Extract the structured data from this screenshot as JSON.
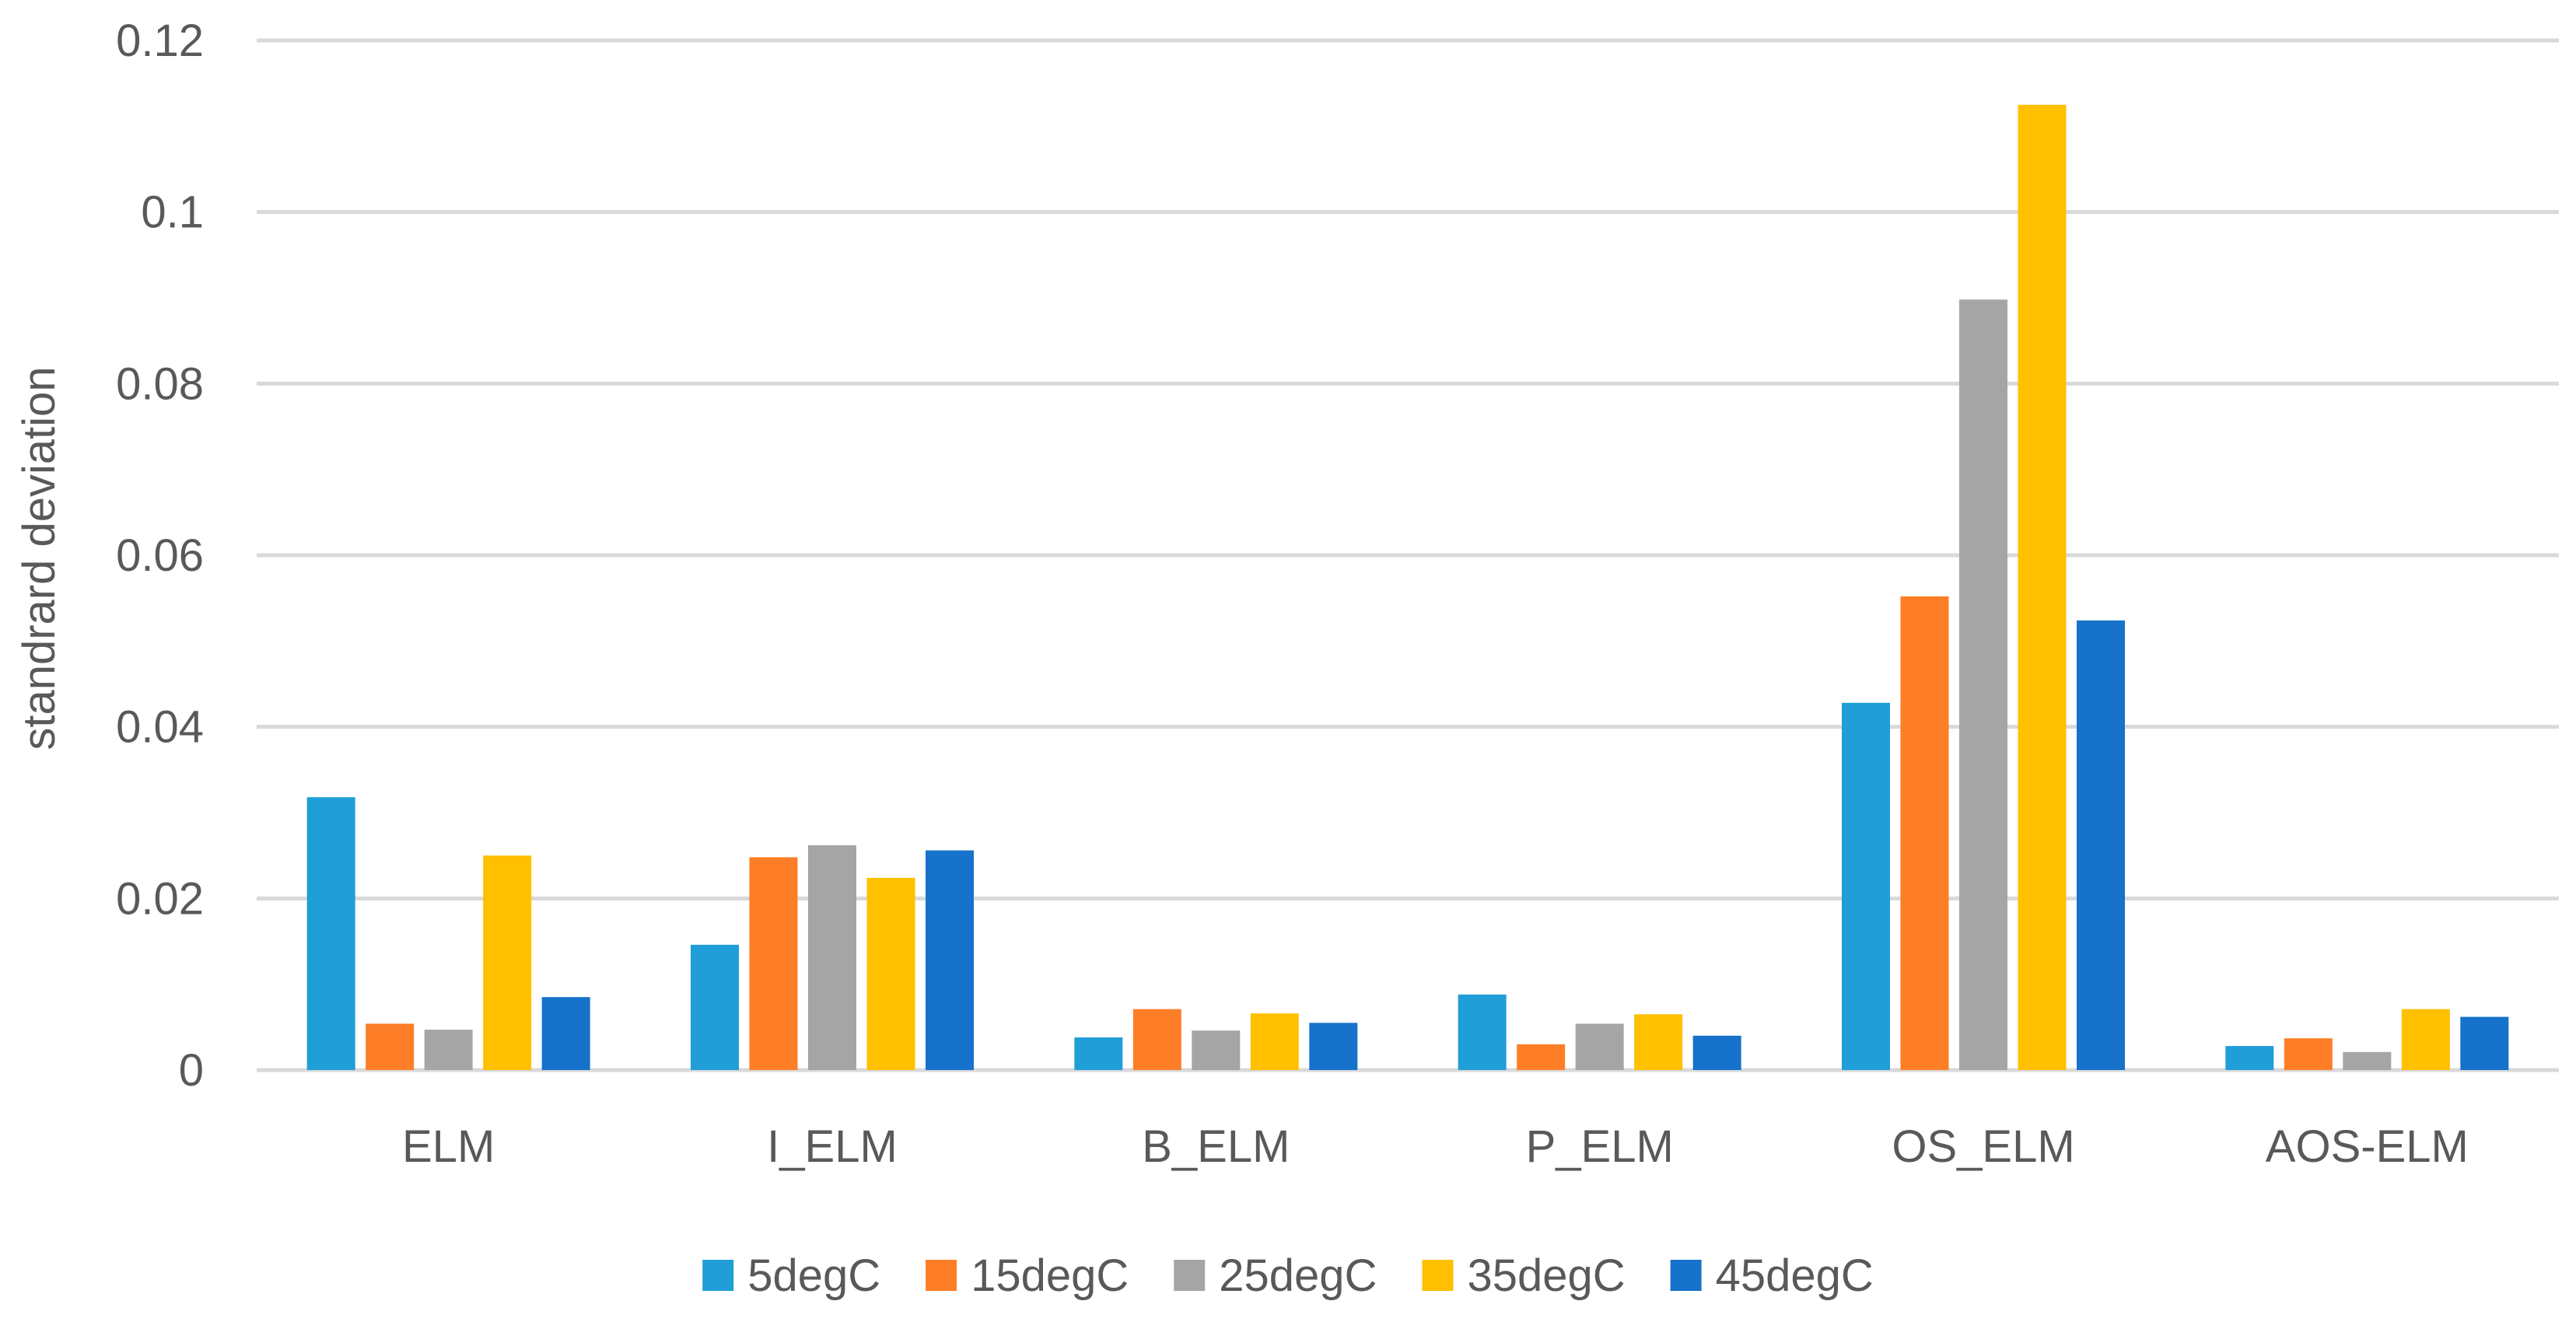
{
  "chart_data": {
    "type": "bar",
    "title": "",
    "xlabel": "",
    "ylabel": "standrard  deviation",
    "categories": [
      "ELM",
      "I_ELM",
      "B_ELM",
      "P_ELM",
      "OS_ELM",
      "AOS-ELM"
    ],
    "series": [
      {
        "name": "5degC",
        "color": "#1f9ed8",
        "values": [
          0.0318,
          0.0146,
          0.0038,
          0.0088,
          0.0428,
          0.0028
        ]
      },
      {
        "name": "15degC",
        "color": "#fd7e26",
        "values": [
          0.0054,
          0.0248,
          0.0071,
          0.003,
          0.0552,
          0.0037
        ]
      },
      {
        "name": "25degC",
        "color": "#a5a5a5",
        "values": [
          0.0047,
          0.0262,
          0.0046,
          0.0054,
          0.0898,
          0.0021
        ]
      },
      {
        "name": "35degC",
        "color": "#ffc000",
        "values": [
          0.025,
          0.0224,
          0.0066,
          0.0065,
          0.1125,
          0.0071
        ]
      },
      {
        "name": "45degC",
        "color": "#1672ca",
        "values": [
          0.0085,
          0.0256,
          0.0055,
          0.004,
          0.0524,
          0.0062
        ]
      }
    ],
    "ylim": [
      0,
      0.12
    ],
    "yticks": [
      "0",
      "0.02",
      "0.04",
      "0.06",
      "0.08",
      "0.1",
      "0.12"
    ],
    "ytick_values": [
      0,
      0.02,
      0.04,
      0.06,
      0.08,
      0.1,
      0.12
    ],
    "grid": true,
    "legend_position": "bottom"
  }
}
